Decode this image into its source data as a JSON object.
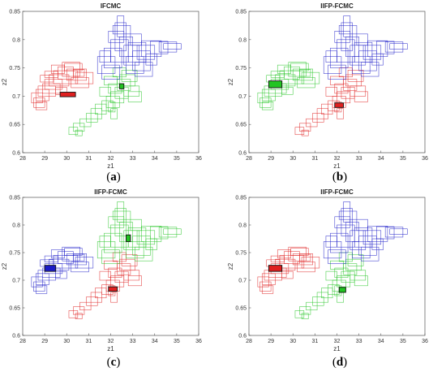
{
  "colors": {
    "red": "#e02020",
    "green": "#22c422",
    "blue": "#1c1cc8"
  },
  "chart_data": [
    {
      "type": "scatter",
      "title": "IFCMC",
      "caption": "(a)",
      "xlabel": "z1",
      "ylabel": "z2",
      "xlim": [
        28,
        36
      ],
      "ylim": [
        0.6,
        0.85
      ],
      "xticks": [
        "28",
        "29",
        "30",
        "31",
        "32",
        "33",
        "34",
        "35",
        "36"
      ],
      "yticks": [
        "0.6",
        "0.65",
        "0.7",
        "0.75",
        "0.8",
        "0.85"
      ],
      "grid": false,
      "mark": "interval-rectangles",
      "clusters": [
        {
          "color": "red",
          "region": "left",
          "prototype": {
            "x": [
              29.7,
              30.4
            ],
            "y": [
              0.699,
              0.707
            ]
          }
        },
        {
          "color": "green",
          "region": "middle",
          "prototype": {
            "x": [
              32.4,
              32.6
            ],
            "y": [
              0.713,
              0.722
            ]
          }
        },
        {
          "color": "blue",
          "region": "upper-right",
          "prototype": null
        }
      ]
    },
    {
      "type": "scatter",
      "title": "IIFP-FCMC",
      "caption": "(b)",
      "xlabel": "z1",
      "ylabel": "z2",
      "xlim": [
        28,
        36
      ],
      "ylim": [
        0.6,
        0.85
      ],
      "xticks": [
        "28",
        "29",
        "30",
        "31",
        "32",
        "33",
        "34",
        "35",
        "36"
      ],
      "yticks": [
        "0.6",
        "0.65",
        "0.7",
        "0.75",
        "0.8",
        "0.85"
      ],
      "grid": false,
      "mark": "interval-rectangles",
      "clusters": [
        {
          "color": "green",
          "region": "left",
          "prototype": {
            "x": [
              28.9,
              29.5
            ],
            "y": [
              0.715,
              0.727
            ]
          }
        },
        {
          "color": "red",
          "region": "middle",
          "prototype": {
            "x": [
              31.9,
              32.3
            ],
            "y": [
              0.68,
              0.688
            ]
          }
        },
        {
          "color": "blue",
          "region": "upper-right",
          "prototype": null
        }
      ]
    },
    {
      "type": "scatter",
      "title": "IIFP-FCMC",
      "caption": "(c)",
      "xlabel": "z1",
      "ylabel": "z2",
      "xlim": [
        28,
        36
      ],
      "ylim": [
        0.6,
        0.85
      ],
      "xticks": [
        "28",
        "29",
        "30",
        "31",
        "32",
        "33",
        "34",
        "35",
        "36"
      ],
      "yticks": [
        "0.6",
        "0.65",
        "0.7",
        "0.75",
        "0.8",
        "0.85"
      ],
      "grid": false,
      "mark": "interval-rectangles",
      "clusters": [
        {
          "color": "blue",
          "region": "left",
          "prototype": {
            "x": [
              29.0,
              29.5
            ],
            "y": [
              0.716,
              0.727
            ]
          }
        },
        {
          "color": "red",
          "region": "middle",
          "prototype": {
            "x": [
              31.9,
              32.3
            ],
            "y": [
              0.68,
              0.688
            ]
          }
        },
        {
          "color": "green",
          "region": "upper-right",
          "prototype": {
            "x": [
              32.7,
              32.9
            ],
            "y": [
              0.77,
              0.782
            ]
          }
        }
      ]
    },
    {
      "type": "scatter",
      "title": "IIFP-FCMC",
      "caption": "(d)",
      "xlabel": "z1",
      "ylabel": "z2",
      "xlim": [
        28,
        36
      ],
      "ylim": [
        0.6,
        0.85
      ],
      "xticks": [
        "28",
        "29",
        "30",
        "31",
        "32",
        "33",
        "34",
        "35",
        "36"
      ],
      "yticks": [
        "0.6",
        "0.65",
        "0.7",
        "0.75",
        "0.8",
        "0.85"
      ],
      "grid": false,
      "mark": "interval-rectangles",
      "clusters": [
        {
          "color": "red",
          "region": "left",
          "prototype": {
            "x": [
              28.9,
              29.5
            ],
            "y": [
              0.716,
              0.727
            ]
          }
        },
        {
          "color": "green",
          "region": "middle",
          "prototype": {
            "x": [
              32.1,
              32.4
            ],
            "y": [
              0.678,
              0.687
            ]
          }
        },
        {
          "color": "blue",
          "region": "upper-right",
          "prototype": null
        }
      ]
    }
  ],
  "interval_data": {
    "left": [
      [
        28.4,
        28.9,
        0.688,
        0.706
      ],
      [
        28.6,
        29.2,
        0.692,
        0.712
      ],
      [
        28.7,
        29.5,
        0.7,
        0.718
      ],
      [
        28.9,
        29.7,
        0.705,
        0.722
      ],
      [
        29.0,
        29.8,
        0.712,
        0.73
      ],
      [
        29.2,
        30.1,
        0.718,
        0.738
      ],
      [
        29.4,
        30.5,
        0.722,
        0.745
      ],
      [
        29.6,
        30.3,
        0.73,
        0.752
      ],
      [
        29.8,
        30.6,
        0.735,
        0.76
      ],
      [
        30.0,
        30.9,
        0.728,
        0.748
      ],
      [
        29.3,
        29.9,
        0.74,
        0.755
      ],
      [
        29.0,
        29.6,
        0.733,
        0.744
      ],
      [
        28.8,
        29.4,
        0.725,
        0.737
      ],
      [
        30.2,
        31.0,
        0.715,
        0.733
      ],
      [
        30.4,
        31.2,
        0.722,
        0.742
      ],
      [
        29.5,
        30.0,
        0.703,
        0.716
      ],
      [
        28.5,
        29.0,
        0.68,
        0.697
      ],
      [
        28.6,
        29.1,
        0.676,
        0.69
      ],
      [
        29.9,
        30.7,
        0.745,
        0.758
      ],
      [
        30.3,
        30.8,
        0.735,
        0.747
      ]
    ],
    "middle": [
      [
        30.1,
        30.5,
        0.632,
        0.645
      ],
      [
        30.3,
        30.8,
        0.638,
        0.652
      ],
      [
        30.6,
        31.1,
        0.646,
        0.66
      ],
      [
        30.9,
        31.4,
        0.654,
        0.67
      ],
      [
        31.1,
        31.6,
        0.66,
        0.678
      ],
      [
        31.3,
        31.8,
        0.668,
        0.686
      ],
      [
        31.6,
        32.1,
        0.674,
        0.692
      ],
      [
        31.8,
        32.4,
        0.68,
        0.7
      ],
      [
        32.0,
        32.6,
        0.688,
        0.708
      ],
      [
        32.2,
        32.8,
        0.696,
        0.716
      ],
      [
        31.9,
        32.5,
        0.705,
        0.722
      ],
      [
        32.3,
        32.9,
        0.71,
        0.73
      ],
      [
        32.4,
        33.1,
        0.718,
        0.738
      ],
      [
        32.5,
        33.2,
        0.726,
        0.746
      ],
      [
        32.1,
        32.7,
        0.734,
        0.75
      ],
      [
        31.7,
        32.3,
        0.72,
        0.735
      ],
      [
        31.5,
        32.0,
        0.7,
        0.716
      ],
      [
        32.6,
        33.3,
        0.7,
        0.718
      ],
      [
        32.0,
        32.3,
        0.66,
        0.678
      ],
      [
        31.9,
        32.2,
        0.672,
        0.69
      ],
      [
        30.4,
        30.7,
        0.63,
        0.64
      ],
      [
        32.8,
        33.4,
        0.69,
        0.708
      ]
    ],
    "upper": [
      [
        31.4,
        32.2,
        0.74,
        0.77
      ],
      [
        31.7,
        32.5,
        0.75,
        0.785
      ],
      [
        32.0,
        32.8,
        0.76,
        0.8
      ],
      [
        32.2,
        32.7,
        0.78,
        0.83
      ],
      [
        32.3,
        32.6,
        0.805,
        0.842
      ],
      [
        32.4,
        33.0,
        0.77,
        0.805
      ],
      [
        32.6,
        33.3,
        0.755,
        0.79
      ],
      [
        32.8,
        33.6,
        0.76,
        0.795
      ],
      [
        33.0,
        33.8,
        0.745,
        0.78
      ],
      [
        33.2,
        34.0,
        0.765,
        0.79
      ],
      [
        33.4,
        34.3,
        0.77,
        0.798
      ],
      [
        33.8,
        34.6,
        0.775,
        0.797
      ],
      [
        34.2,
        35.0,
        0.778,
        0.796
      ],
      [
        34.4,
        35.2,
        0.783,
        0.793
      ],
      [
        31.6,
        32.4,
        0.73,
        0.755
      ],
      [
        31.9,
        32.6,
        0.795,
        0.815
      ],
      [
        32.1,
        32.9,
        0.81,
        0.825
      ],
      [
        32.7,
        33.5,
        0.74,
        0.77
      ],
      [
        31.5,
        32.0,
        0.76,
        0.78
      ],
      [
        33.1,
        33.9,
        0.735,
        0.76
      ],
      [
        32.9,
        33.4,
        0.79,
        0.81
      ],
      [
        33.6,
        34.1,
        0.755,
        0.775
      ]
    ]
  }
}
